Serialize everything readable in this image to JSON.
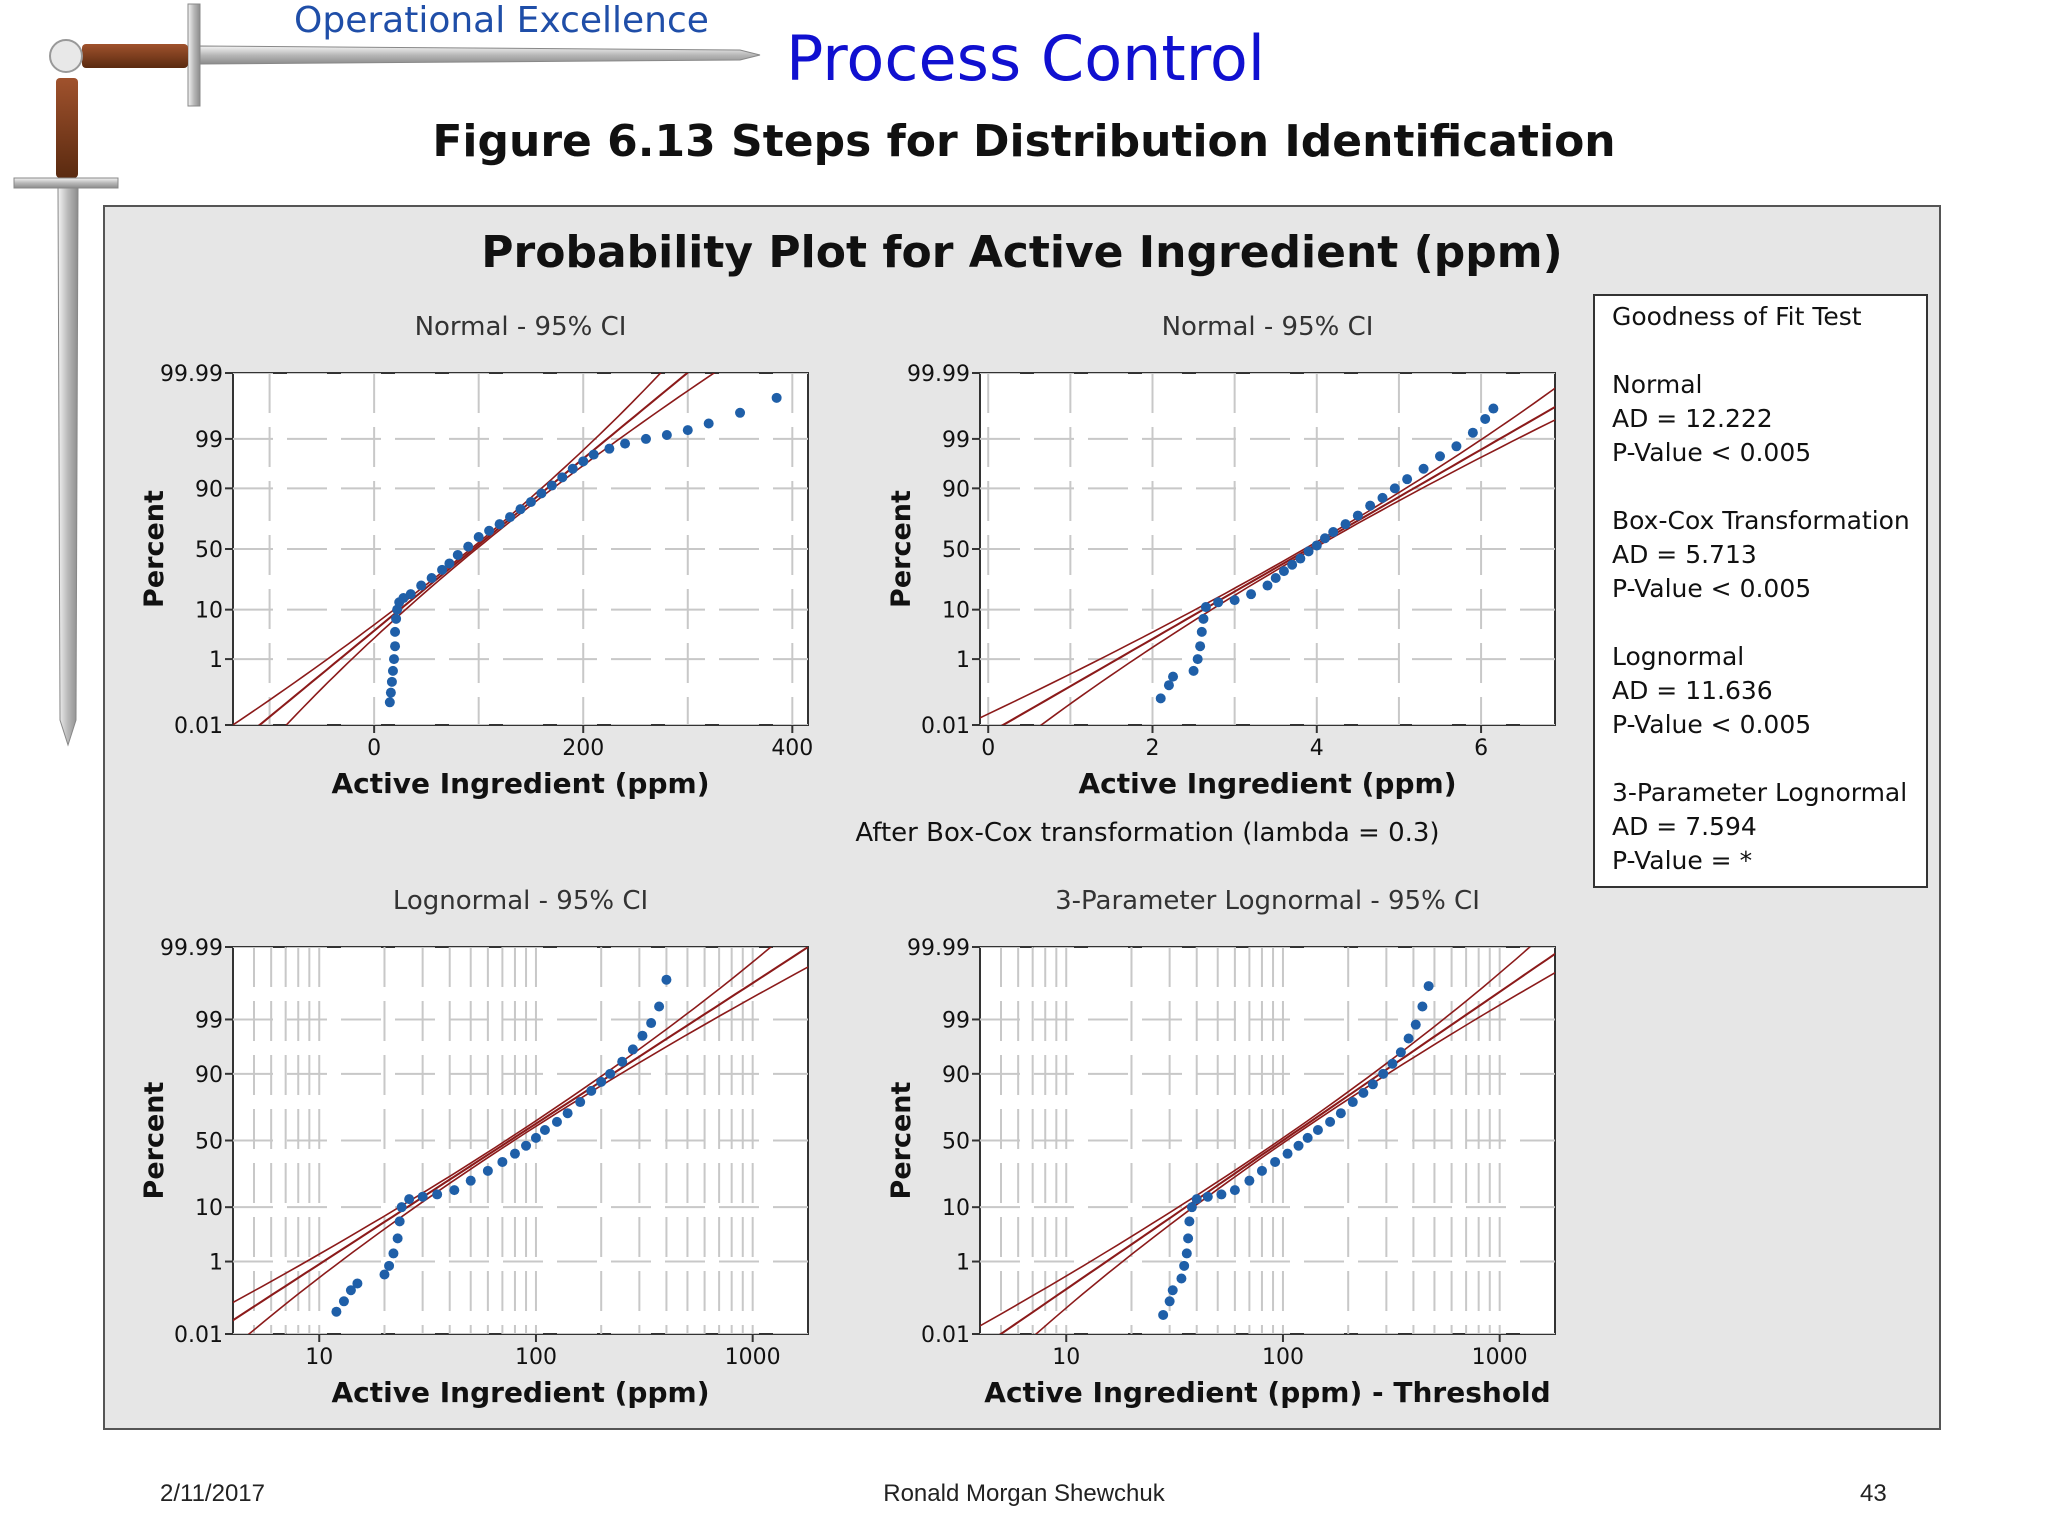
{
  "header": {
    "brand": "Operational Excellence",
    "title": "Process Control",
    "figure_caption": "Figure 6.13  Steps for Distribution Identification"
  },
  "footer": {
    "date": "2/11/2017",
    "author": "Ronald Morgan Shewchuk",
    "page": "43"
  },
  "colors": {
    "panel_bg": "#e6e6e6",
    "plot_bg": "#ffffff",
    "points": "#1f5fa8",
    "fit_line": "#8b1a1a",
    "grid": "#c8c8c8",
    "brand": "#1f4ea8",
    "title": "#1010d0"
  },
  "decoration": {
    "icon": "sword-icon"
  },
  "chart_data": {
    "type": "scatter",
    "title": "Probability Plot for Active Ingredient (ppm)",
    "percent_ticks": [
      "0.01",
      "1",
      "10",
      "50",
      "90",
      "99",
      "99.99"
    ],
    "legend": {
      "title": "Goodness of Fit Test",
      "placement": "right",
      "entries": [
        {
          "name": "Normal",
          "ad": "AD = 12.222",
          "p": "P-Value < 0.005"
        },
        {
          "name": "Box-Cox Transformation",
          "ad": "AD = 5.713",
          "p": "P-Value < 0.005"
        },
        {
          "name": "Lognormal",
          "ad": "AD = 11.636",
          "p": "P-Value < 0.005"
        },
        {
          "name": "3-Parameter Lognormal",
          "ad": "AD = 7.594",
          "p": "P-Value = *"
        }
      ]
    },
    "panels": [
      {
        "subtitle": "Normal - 95% CI",
        "xlabel": "Active Ingredient (ppm)",
        "ylabel": "Percent",
        "note": "",
        "x_scale": "linear",
        "xlim": [
          -135,
          415
        ],
        "x_ticks": [
          0,
          200,
          400
        ],
        "x_tick_labels": [
          "0",
          "200",
          "400"
        ],
        "fit": {
          "mean": 95,
          "sd": 55
        },
        "points": [
          [
            15,
            0.06
          ],
          [
            16,
            0.12
          ],
          [
            17,
            0.25
          ],
          [
            18,
            0.5
          ],
          [
            19,
            1
          ],
          [
            20,
            2
          ],
          [
            20,
            4
          ],
          [
            21,
            7
          ],
          [
            22,
            10
          ],
          [
            24,
            13
          ],
          [
            28,
            15
          ],
          [
            35,
            17
          ],
          [
            45,
            22
          ],
          [
            55,
            27
          ],
          [
            65,
            33
          ],
          [
            72,
            38
          ],
          [
            80,
            45
          ],
          [
            90,
            52
          ],
          [
            100,
            60
          ],
          [
            110,
            65
          ],
          [
            120,
            70
          ],
          [
            130,
            75
          ],
          [
            140,
            80
          ],
          [
            150,
            84
          ],
          [
            160,
            88
          ],
          [
            170,
            91
          ],
          [
            180,
            93.5
          ],
          [
            190,
            95.5
          ],
          [
            200,
            96.8
          ],
          [
            210,
            97.7
          ],
          [
            225,
            98.3
          ],
          [
            240,
            98.7
          ],
          [
            260,
            99.0
          ],
          [
            280,
            99.2
          ],
          [
            300,
            99.4
          ],
          [
            320,
            99.6
          ],
          [
            350,
            99.8
          ],
          [
            385,
            99.93
          ]
        ]
      },
      {
        "subtitle": "Normal - 95% CI",
        "xlabel": "Active Ingredient (ppm)",
        "ylabel": "Percent",
        "note": "After Box-Cox transformation (lambda = 0.3)",
        "x_scale": "linear",
        "xlim": [
          -0.1,
          6.9
        ],
        "x_ticks": [
          0,
          2,
          4,
          6
        ],
        "x_tick_labels": [
          "0",
          "2",
          "4",
          "6"
        ],
        "fit": {
          "mean": 3.9,
          "sd": 1.0
        },
        "points": [
          [
            2.1,
            0.08
          ],
          [
            2.2,
            0.2
          ],
          [
            2.25,
            0.35
          ],
          [
            2.5,
            0.5
          ],
          [
            2.55,
            1
          ],
          [
            2.58,
            2
          ],
          [
            2.6,
            4
          ],
          [
            2.62,
            7
          ],
          [
            2.65,
            11
          ],
          [
            2.8,
            13
          ],
          [
            3.0,
            14
          ],
          [
            3.2,
            17
          ],
          [
            3.4,
            22
          ],
          [
            3.5,
            27
          ],
          [
            3.6,
            32
          ],
          [
            3.7,
            37
          ],
          [
            3.8,
            42
          ],
          [
            3.9,
            48
          ],
          [
            4.0,
            53
          ],
          [
            4.1,
            59
          ],
          [
            4.2,
            64
          ],
          [
            4.35,
            70
          ],
          [
            4.5,
            76
          ],
          [
            4.65,
            82
          ],
          [
            4.8,
            86
          ],
          [
            4.95,
            90
          ],
          [
            5.1,
            93
          ],
          [
            5.3,
            95.5
          ],
          [
            5.5,
            97.5
          ],
          [
            5.7,
            98.5
          ],
          [
            5.9,
            99.3
          ],
          [
            6.05,
            99.7
          ],
          [
            6.15,
            99.85
          ]
        ]
      },
      {
        "subtitle": "Lognormal - 95% CI",
        "xlabel": "Active Ingredient (ppm)",
        "ylabel": "Percent",
        "note": "",
        "x_scale": "log",
        "xlim": [
          4.0,
          1800
        ],
        "x_ticks": [
          10,
          100,
          1000
        ],
        "x_tick_labels": [
          "10",
          "100",
          "1000"
        ],
        "fit": {
          "mu_log10": 1.88,
          "sigma_log10": 0.37
        },
        "points": [
          [
            12,
            0.05
          ],
          [
            13,
            0.1
          ],
          [
            14,
            0.2
          ],
          [
            15,
            0.3
          ],
          [
            20,
            0.5
          ],
          [
            21,
            0.8
          ],
          [
            22,
            1.5
          ],
          [
            23,
            3
          ],
          [
            23.5,
            6
          ],
          [
            24,
            10
          ],
          [
            26,
            13
          ],
          [
            30,
            14
          ],
          [
            35,
            15
          ],
          [
            42,
            17
          ],
          [
            50,
            22
          ],
          [
            60,
            28
          ],
          [
            70,
            34
          ],
          [
            80,
            40
          ],
          [
            90,
            46
          ],
          [
            100,
            52
          ],
          [
            110,
            58
          ],
          [
            125,
            64
          ],
          [
            140,
            70
          ],
          [
            160,
            77
          ],
          [
            180,
            83
          ],
          [
            200,
            87
          ],
          [
            220,
            90
          ],
          [
            250,
            93.5
          ],
          [
            280,
            96
          ],
          [
            310,
            97.8
          ],
          [
            340,
            98.8
          ],
          [
            370,
            99.5
          ],
          [
            400,
            99.9
          ]
        ]
      },
      {
        "subtitle": "3-Parameter Lognormal - 95% CI",
        "xlabel": "Active Ingredient (ppm) - Threshold",
        "ylabel": "Percent",
        "note": "",
        "x_scale": "log",
        "xlim": [
          4.0,
          1800
        ],
        "x_ticks": [
          10,
          100,
          1000
        ],
        "x_tick_labels": [
          "10",
          "100",
          "1000"
        ],
        "fit": {
          "mu_log10": 2.0,
          "sigma_log10": 0.35
        },
        "points": [
          [
            28,
            0.04
          ],
          [
            30,
            0.1
          ],
          [
            31,
            0.2
          ],
          [
            34,
            0.4
          ],
          [
            35,
            0.8
          ],
          [
            36,
            1.5
          ],
          [
            36.5,
            3
          ],
          [
            37,
            6
          ],
          [
            38,
            10
          ],
          [
            40,
            13
          ],
          [
            45,
            14
          ],
          [
            52,
            15
          ],
          [
            60,
            17
          ],
          [
            70,
            22
          ],
          [
            80,
            28
          ],
          [
            92,
            34
          ],
          [
            105,
            40
          ],
          [
            118,
            46
          ],
          [
            130,
            52
          ],
          [
            145,
            58
          ],
          [
            165,
            64
          ],
          [
            185,
            70
          ],
          [
            210,
            77
          ],
          [
            235,
            82
          ],
          [
            260,
            86
          ],
          [
            290,
            90
          ],
          [
            320,
            93
          ],
          [
            350,
            95.5
          ],
          [
            380,
            97.5
          ],
          [
            410,
            98.7
          ],
          [
            440,
            99.5
          ],
          [
            470,
            99.85
          ]
        ]
      }
    ]
  }
}
